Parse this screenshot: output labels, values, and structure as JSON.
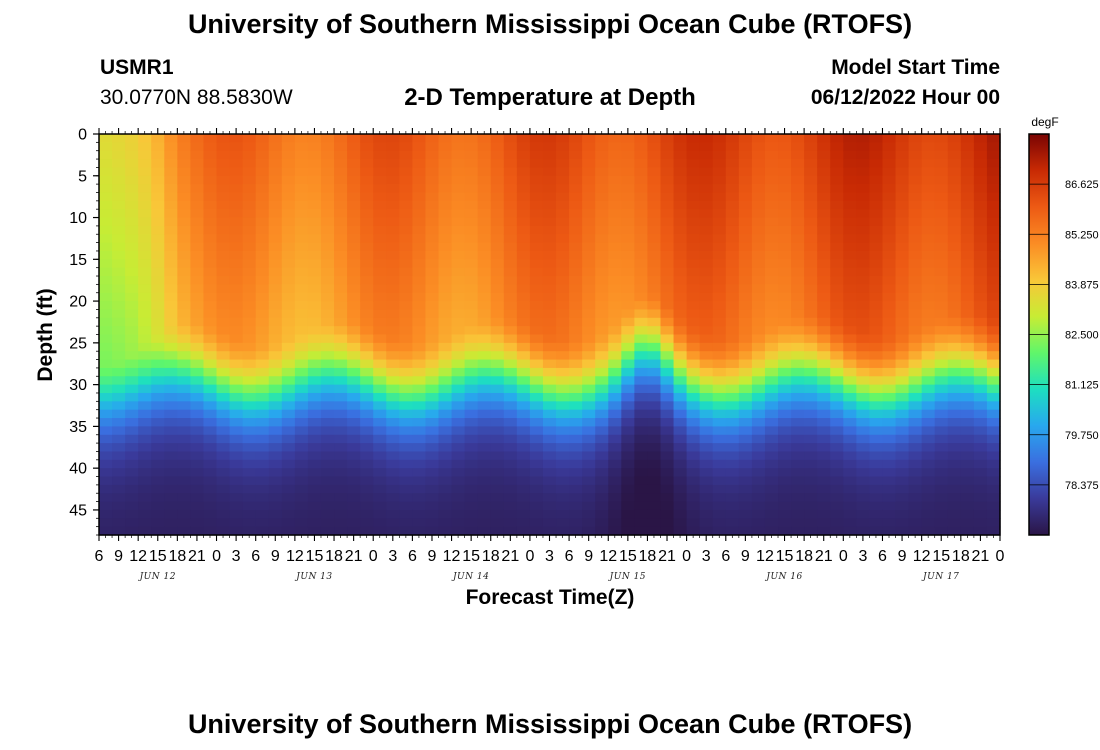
{
  "header": {
    "title": "University of Southern Mississippi Ocean Cube (RTOFS)",
    "station_id": "USMR1",
    "station_coords": "30.0770N  88.5830W",
    "subtitle": "2-D Temperature at Depth",
    "model_start_label": "Model Start Time",
    "model_start_value": "06/12/2022 Hour 00"
  },
  "footer": {
    "title": "University of Southern Mississippi Ocean Cube (RTOFS)"
  },
  "chart_data": {
    "type": "heatmap",
    "xlabel": "Forecast Time(Z)",
    "ylabel": "Depth (ft)",
    "y_ticks": [
      0,
      5,
      10,
      15,
      20,
      25,
      30,
      35,
      40,
      45
    ],
    "ylim": [
      0,
      48
    ],
    "x_tick_labels": [
      "6",
      "9",
      "12",
      "15",
      "18",
      "21",
      "0",
      "3",
      "6",
      "9",
      "12",
      "15",
      "18",
      "21",
      "0",
      "3",
      "6",
      "9",
      "12",
      "15",
      "18",
      "21",
      "0",
      "3",
      "6",
      "9",
      "12",
      "15",
      "18",
      "21",
      "0",
      "3",
      "6",
      "9",
      "12",
      "15",
      "18",
      "21",
      "0",
      "3",
      "6",
      "9",
      "12",
      "15",
      "18",
      "21",
      "0"
    ],
    "day_labels": [
      {
        "label": "JUN 12",
        "hour": 15
      },
      {
        "label": "JUN 13",
        "hour": 39
      },
      {
        "label": "JUN 14",
        "hour": 63
      },
      {
        "label": "JUN 15",
        "hour": 87
      },
      {
        "label": "JUN 16",
        "hour": 111
      },
      {
        "label": "JUN 17",
        "hour": 135
      }
    ],
    "xlim_hours": [
      6,
      144
    ],
    "colorbar": {
      "unit": "degF",
      "min": 77.0,
      "max": 88.0,
      "labels": [
        "86.625",
        "85.250",
        "83.875",
        "82.500",
        "81.125",
        "79.750",
        "78.375"
      ],
      "colors": [
        "#2a1546",
        "#3a3a9a",
        "#3a6fe0",
        "#28a8ee",
        "#1ddfc0",
        "#60f66a",
        "#c8ec34",
        "#f9c638",
        "#fb8c24",
        "#ed5a14",
        "#c82a04",
        "#7a0403"
      ]
    },
    "grid": false,
    "legend": "colorbar-right"
  }
}
